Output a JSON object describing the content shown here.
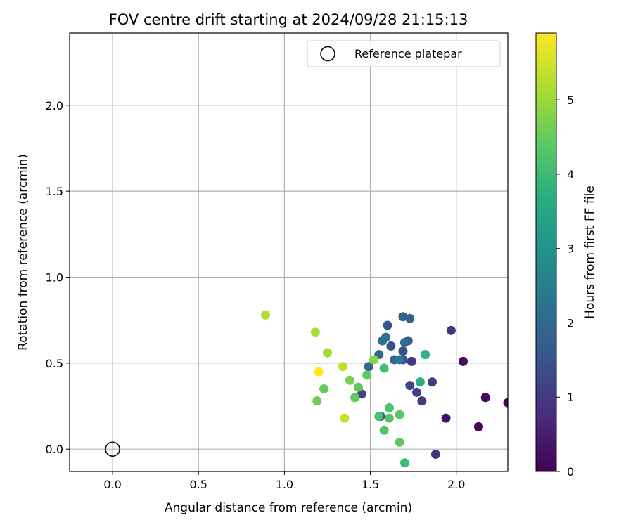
{
  "chart_data": {
    "type": "scatter",
    "title": "FOV centre drift starting at 2024/09/28 21:15:13",
    "xlabel": "Angular distance from reference (arcmin)",
    "ylabel": "Rotation from reference (arcmin)",
    "xlim": [
      -0.25,
      2.3
    ],
    "ylim": [
      -0.13,
      2.42
    ],
    "xticks": [
      0.0,
      0.5,
      1.0,
      1.5,
      2.0
    ],
    "xtick_labels": [
      "0.0",
      "0.5",
      "1.0",
      "1.5",
      "2.0"
    ],
    "yticks": [
      0.0,
      0.5,
      1.0,
      1.5,
      2.0
    ],
    "ytick_labels": [
      "0.0",
      "0.5",
      "1.0",
      "1.5",
      "2.0"
    ],
    "grid": true,
    "legend": {
      "position": "top-right",
      "entries": [
        "Reference platepar"
      ]
    },
    "reference_point": {
      "x": 0.0,
      "y": 0.0
    },
    "colorbar": {
      "label": "Hours from first FF file",
      "colormap": "viridis",
      "range": [
        0,
        5.9
      ],
      "ticks": [
        0,
        1,
        2,
        3,
        4,
        5
      ],
      "tick_labels": [
        "0",
        "1",
        "2",
        "3",
        "4",
        "5"
      ]
    },
    "points": [
      {
        "x": 2.3,
        "y": 0.27,
        "c": 0.05
      },
      {
        "x": 2.17,
        "y": 0.3,
        "c": 0.1
      },
      {
        "x": 2.13,
        "y": 0.13,
        "c": 0.15
      },
      {
        "x": 2.04,
        "y": 0.51,
        "c": 0.2
      },
      {
        "x": 1.94,
        "y": 0.18,
        "c": 0.25
      },
      {
        "x": 1.88,
        "y": -0.03,
        "c": 0.9
      },
      {
        "x": 1.97,
        "y": 0.69,
        "c": 0.95
      },
      {
        "x": 1.8,
        "y": 0.28,
        "c": 1.0
      },
      {
        "x": 1.86,
        "y": 0.39,
        "c": 1.05
      },
      {
        "x": 1.74,
        "y": 0.51,
        "c": 1.0
      },
      {
        "x": 1.77,
        "y": 0.33,
        "c": 1.1
      },
      {
        "x": 1.73,
        "y": 0.37,
        "c": 1.2
      },
      {
        "x": 1.45,
        "y": 0.32,
        "c": 1.25
      },
      {
        "x": 1.56,
        "y": 0.19,
        "c": 1.3
      },
      {
        "x": 1.69,
        "y": 0.57,
        "c": 1.4
      },
      {
        "x": 1.69,
        "y": 0.52,
        "c": 1.5
      },
      {
        "x": 1.62,
        "y": 0.6,
        "c": 1.5
      },
      {
        "x": 1.6,
        "y": 0.72,
        "c": 1.55
      },
      {
        "x": 1.72,
        "y": 0.63,
        "c": 1.7
      },
      {
        "x": 1.73,
        "y": 0.76,
        "c": 1.8
      },
      {
        "x": 1.69,
        "y": 0.77,
        "c": 1.85
      },
      {
        "x": 1.64,
        "y": 0.52,
        "c": 1.9
      },
      {
        "x": 1.49,
        "y": 0.48,
        "c": 2.0
      },
      {
        "x": 1.55,
        "y": 0.55,
        "c": 2.05
      },
      {
        "x": 1.7,
        "y": 0.62,
        "c": 2.1
      },
      {
        "x": 1.57,
        "y": 0.63,
        "c": 2.2
      },
      {
        "x": 1.59,
        "y": 0.65,
        "c": 2.3
      },
      {
        "x": 1.67,
        "y": 0.52,
        "c": 2.4
      },
      {
        "x": 1.79,
        "y": 0.39,
        "c": 3.6
      },
      {
        "x": 1.82,
        "y": 0.55,
        "c": 3.8
      },
      {
        "x": 1.7,
        "y": -0.08,
        "c": 4.0
      },
      {
        "x": 1.58,
        "y": 0.47,
        "c": 4.1
      },
      {
        "x": 1.55,
        "y": 0.19,
        "c": 4.2
      },
      {
        "x": 1.61,
        "y": 0.24,
        "c": 4.25
      },
      {
        "x": 1.61,
        "y": 0.18,
        "c": 4.3
      },
      {
        "x": 1.58,
        "y": 0.11,
        "c": 4.3
      },
      {
        "x": 1.67,
        "y": 0.2,
        "c": 4.35
      },
      {
        "x": 1.67,
        "y": 0.04,
        "c": 4.4
      },
      {
        "x": 1.48,
        "y": 0.43,
        "c": 4.4
      },
      {
        "x": 1.43,
        "y": 0.36,
        "c": 4.45
      },
      {
        "x": 1.41,
        "y": 0.3,
        "c": 4.5
      },
      {
        "x": 1.23,
        "y": 0.35,
        "c": 4.5
      },
      {
        "x": 1.19,
        "y": 0.28,
        "c": 4.6
      },
      {
        "x": 1.38,
        "y": 0.4,
        "c": 4.7
      },
      {
        "x": 1.52,
        "y": 0.52,
        "c": 4.85
      },
      {
        "x": 1.25,
        "y": 0.56,
        "c": 5.1
      },
      {
        "x": 1.18,
        "y": 0.68,
        "c": 5.15
      },
      {
        "x": 0.89,
        "y": 0.78,
        "c": 5.2
      },
      {
        "x": 1.34,
        "y": 0.48,
        "c": 5.35
      },
      {
        "x": 1.35,
        "y": 0.18,
        "c": 5.4
      },
      {
        "x": 1.2,
        "y": 0.45,
        "c": 5.9
      }
    ]
  }
}
